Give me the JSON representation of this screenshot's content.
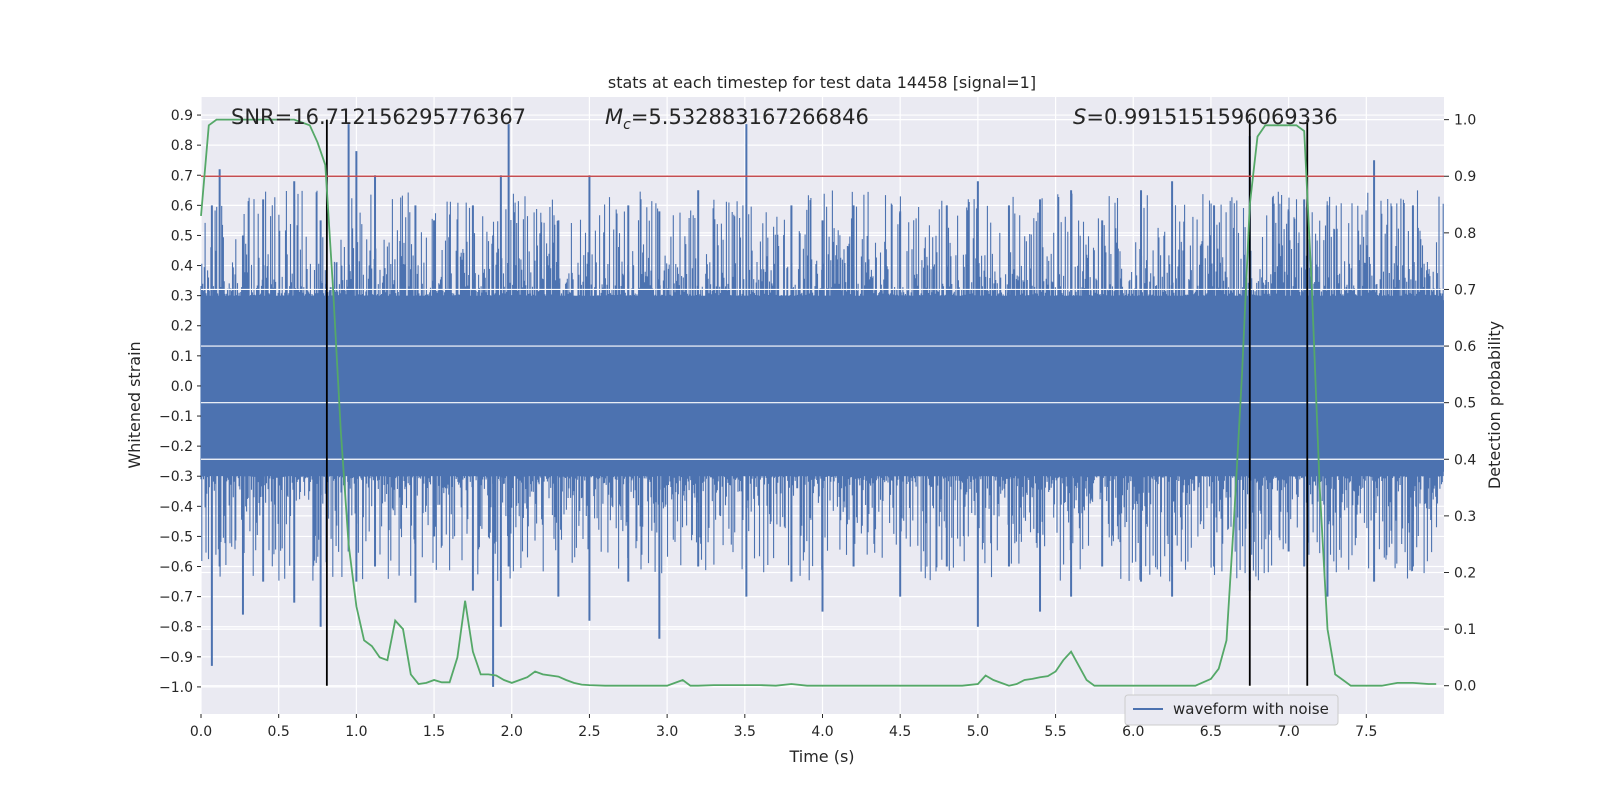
{
  "chart_data": {
    "type": "line",
    "title": "stats at each timestep for test data 14458 [signal=1]",
    "xlabel": "Time (s)",
    "ylabel_left": "Whitened strain",
    "ylabel_right": "Detection probability",
    "xlim": [
      0.0,
      8.0
    ],
    "ylim_left": [
      -1.09,
      0.96
    ],
    "ylim_right": [
      -0.05,
      1.04
    ],
    "x_ticks": [
      0.0,
      0.5,
      1.0,
      1.5,
      2.0,
      2.5,
      3.0,
      3.5,
      4.0,
      4.5,
      5.0,
      5.5,
      6.0,
      6.5,
      7.0,
      7.5
    ],
    "x_tick_labels": [
      "0.0",
      "0.5",
      "1.0",
      "1.5",
      "2.0",
      "2.5",
      "3.0",
      "3.5",
      "4.0",
      "4.5",
      "5.0",
      "5.5",
      "6.0",
      "6.5",
      "7.0",
      "7.5"
    ],
    "y_ticks_left": [
      0.9,
      0.8,
      0.7,
      0.6,
      0.5,
      0.4,
      0.3,
      0.2,
      0.1,
      0.0,
      -0.1,
      -0.2,
      -0.3,
      -0.4,
      -0.5,
      -0.6,
      -0.7,
      -0.8,
      -0.9,
      -1.0
    ],
    "y_tick_labels_left": [
      "0.9",
      "0.8",
      "0.7",
      "0.6",
      "0.5",
      "0.4",
      "0.3",
      "0.2",
      "0.1",
      "0.0",
      "−0.1",
      "−0.2",
      "−0.3",
      "−0.4",
      "−0.5",
      "−0.6",
      "−0.7",
      "−0.8",
      "−0.9",
      "−1.0"
    ],
    "y_ticks_right": [
      1.0,
      0.9,
      0.8,
      0.7,
      0.6,
      0.5,
      0.4,
      0.3,
      0.2,
      0.1,
      0.0
    ],
    "y_tick_labels_right": [
      "1.0",
      "0.9",
      "0.8",
      "0.7",
      "0.6",
      "0.5",
      "0.4",
      "0.3",
      "0.2",
      "0.1",
      "0.0"
    ],
    "grid": true,
    "legend": {
      "entries": [
        "waveform with noise"
      ],
      "placement": "lower-right"
    },
    "annotations": {
      "snr": "SNR=16.712156295776367",
      "mc_symbol": "M",
      "mc_sub": "c",
      "mc_value": "=5.532883167266846",
      "s_symbol": "S",
      "s_value": "=0.9915151596069336"
    },
    "threshold_line": {
      "axis": "right",
      "y": 0.9,
      "color": "#c44e52"
    },
    "vertical_lines": [
      0.81,
      6.75,
      7.12
    ],
    "waveform": {
      "name": "waveform with noise",
      "axis": "left",
      "color": "#4c72b0",
      "typical_envelope": [
        -0.3,
        0.3
      ],
      "peak_x": [
        0.07,
        0.12,
        0.27,
        0.4,
        0.6,
        0.77,
        0.95,
        1.0,
        1.12,
        1.38,
        1.5,
        1.75,
        1.88,
        1.93,
        1.98,
        2.3,
        2.5,
        2.75,
        2.95,
        3.2,
        3.51,
        3.8,
        4.0,
        4.2,
        4.5,
        4.8,
        5.0,
        5.2,
        5.4,
        5.6,
        5.8,
        6.05,
        6.25,
        6.52,
        6.75,
        7.0,
        7.1,
        7.25,
        7.55,
        7.8
      ],
      "peak_max": [
        0.6,
        0.72,
        0.5,
        0.62,
        0.68,
        0.55,
        0.87,
        0.78,
        0.7,
        0.6,
        0.55,
        0.6,
        0.5,
        0.7,
        0.87,
        0.55,
        0.7,
        0.6,
        0.58,
        0.65,
        0.87,
        0.6,
        0.55,
        0.6,
        0.58,
        0.6,
        0.68,
        0.6,
        0.62,
        0.65,
        0.55,
        0.65,
        0.68,
        0.6,
        0.83,
        0.58,
        0.62,
        0.6,
        0.75,
        0.6
      ],
      "peak_min": [
        -0.93,
        -0.6,
        -0.76,
        -0.65,
        -0.72,
        -0.8,
        -0.55,
        -0.65,
        -0.6,
        -0.72,
        -0.5,
        -0.68,
        -1.0,
        -0.8,
        -0.6,
        -0.7,
        -0.78,
        -0.65,
        -0.84,
        -0.6,
        -0.7,
        -0.65,
        -0.75,
        -0.6,
        -0.7,
        -0.6,
        -0.8,
        -0.6,
        -0.75,
        -0.7,
        -0.6,
        -0.65,
        -0.7,
        -0.6,
        -0.68,
        -0.55,
        -0.6,
        -0.7,
        -0.65,
        -0.6
      ]
    },
    "detection_probability": {
      "axis": "right",
      "color": "#55a868",
      "x": [
        0.0,
        0.05,
        0.1,
        0.2,
        0.3,
        0.4,
        0.5,
        0.6,
        0.7,
        0.75,
        0.8,
        0.85,
        0.9,
        0.95,
        1.0,
        1.05,
        1.1,
        1.15,
        1.2,
        1.25,
        1.3,
        1.35,
        1.4,
        1.45,
        1.5,
        1.55,
        1.6,
        1.65,
        1.7,
        1.75,
        1.8,
        1.85,
        1.9,
        1.95,
        2.0,
        2.1,
        2.15,
        2.2,
        2.3,
        2.35,
        2.4,
        2.45,
        2.5,
        2.6,
        2.7,
        2.8,
        2.9,
        3.0,
        3.05,
        3.1,
        3.15,
        3.2,
        3.3,
        3.4,
        3.5,
        3.6,
        3.7,
        3.8,
        3.9,
        4.0,
        4.1,
        4.5,
        4.9,
        5.0,
        5.05,
        5.1,
        5.15,
        5.2,
        5.25,
        5.3,
        5.35,
        5.4,
        5.45,
        5.5,
        5.55,
        5.6,
        5.65,
        5.7,
        5.75,
        5.8,
        5.9,
        6.0,
        6.2,
        6.4,
        6.5,
        6.55,
        6.6,
        6.65,
        6.7,
        6.75,
        6.8,
        6.85,
        6.9,
        6.95,
        7.0,
        7.05,
        7.1,
        7.15,
        7.2,
        7.25,
        7.3,
        7.35,
        7.4,
        7.5,
        7.6,
        7.7,
        7.8,
        7.9,
        7.95
      ],
      "y": [
        0.83,
        0.99,
        1.0,
        1.0,
        1.0,
        1.0,
        1.0,
        1.0,
        0.99,
        0.96,
        0.92,
        0.7,
        0.45,
        0.25,
        0.14,
        0.08,
        0.07,
        0.05,
        0.045,
        0.115,
        0.1,
        0.02,
        0.003,
        0.005,
        0.01,
        0.006,
        0.006,
        0.05,
        0.15,
        0.06,
        0.02,
        0.02,
        0.018,
        0.01,
        0.005,
        0.015,
        0.025,
        0.02,
        0.016,
        0.01,
        0.005,
        0.002,
        0.001,
        0.0,
        0.0,
        0.0,
        0.0,
        0.0,
        0.005,
        0.01,
        0.0,
        0.0,
        0.001,
        0.001,
        0.001,
        0.001,
        0.0,
        0.003,
        0.0,
        0.0,
        0.0,
        0.0,
        0.0,
        0.003,
        0.018,
        0.01,
        0.005,
        0.0,
        0.003,
        0.01,
        0.012,
        0.015,
        0.017,
        0.025,
        0.045,
        0.06,
        0.035,
        0.01,
        0.0,
        0.0,
        0.0,
        0.0,
        0.0,
        0.0,
        0.012,
        0.03,
        0.08,
        0.3,
        0.55,
        0.85,
        0.97,
        0.99,
        0.99,
        0.99,
        0.99,
        0.99,
        0.98,
        0.7,
        0.35,
        0.1,
        0.02,
        0.01,
        0.0,
        0.0,
        0.0,
        0.005,
        0.005,
        0.003,
        0.003
      ]
    }
  }
}
